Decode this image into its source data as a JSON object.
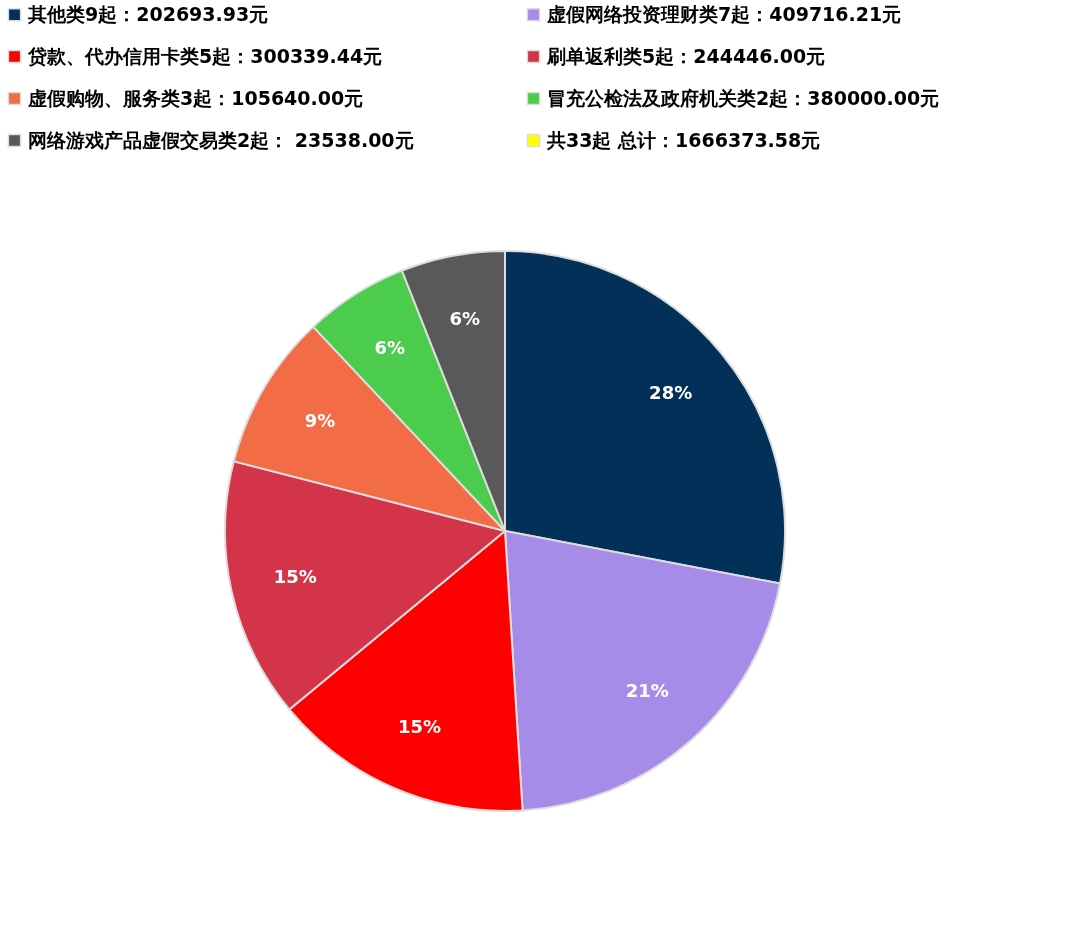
{
  "chart_data": {
    "type": "pie",
    "categories": [
      "其他类9起：202693.93元",
      "虚假网络投资理财类7起：409716.21元",
      "贷款、代办信用卡类5起：300339.44元",
      "刷单返利类5起：244446.00元",
      "虚假购物、服务类3起：105640.00元",
      "冒充公检法及政府机关类2起：380000.00元",
      "网络游戏产品虚假交易类2起： 23538.00元",
      "共33起 总计：1666373.58元"
    ],
    "values": [
      28,
      21,
      15,
      15,
      9,
      6,
      6,
      0
    ],
    "colors": [
      "#023059",
      "#a78be8",
      "#ff0000",
      "#d3344a",
      "#f26c45",
      "#4ccc4c",
      "#595959",
      "#ffff00"
    ],
    "value_labels": [
      "28%",
      "21%",
      "15%",
      "15%",
      "9%",
      "6%",
      "6%",
      null
    ],
    "legend": "top"
  }
}
